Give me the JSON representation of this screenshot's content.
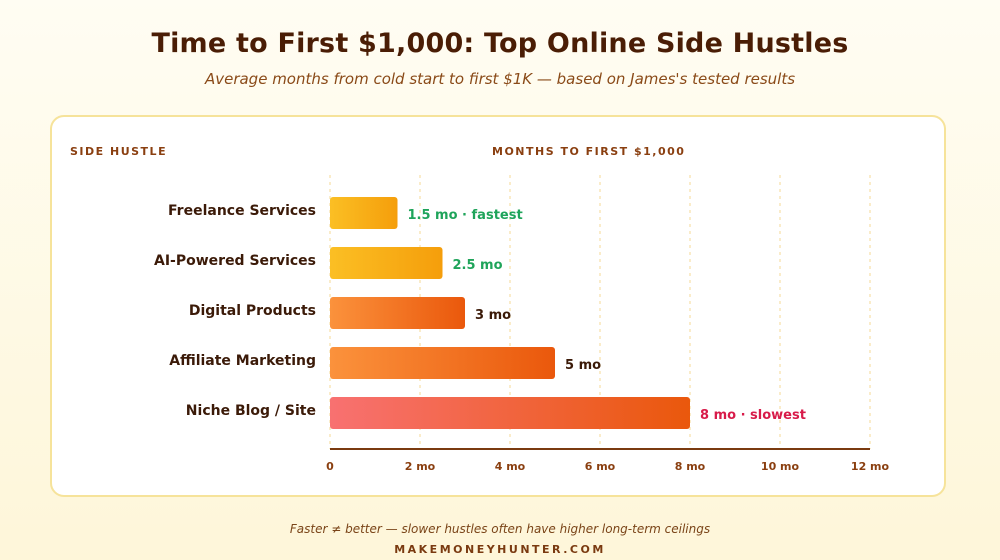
{
  "chart_data": {
    "type": "bar",
    "orientation": "horizontal",
    "title": "Time to First $1,000: Top Online Side Hustles",
    "subtitle": "Average months from cold start to first $1K — based on James's tested results",
    "category_header": "SIDE HUSTLE",
    "value_header": "MONTHS TO FIRST $1,000",
    "categories": [
      "Freelance Services",
      "AI-Powered Services",
      "Digital Products",
      "Affiliate Marketing",
      "Niche Blog / Site"
    ],
    "values": [
      1.5,
      2.5,
      3,
      5,
      8
    ],
    "value_labels": [
      "1.5 mo · fastest",
      "2.5 mo",
      "3 mo",
      "5 mo",
      "8 mo · slowest"
    ],
    "label_colors": [
      "#1fa45a",
      "#1fa45a",
      "#3b1a08",
      "#3b1a08",
      "#d81b4a"
    ],
    "bar_gradients": [
      [
        "#fbbf24",
        "#f59e0b"
      ],
      [
        "#fbbf24",
        "#f59e0b"
      ],
      [
        "#fb923c",
        "#ea580c"
      ],
      [
        "#fb923c",
        "#ea580c"
      ],
      [
        "#f87171",
        "#ea580c"
      ]
    ],
    "xlim": [
      0,
      12
    ],
    "xticks": [
      0,
      2,
      4,
      6,
      8,
      10,
      12
    ],
    "xtick_labels": [
      "0",
      "2 mo",
      "4 mo",
      "6 mo",
      "8 mo",
      "10 mo",
      "12 mo"
    ],
    "grid": true
  },
  "footer": {
    "note": "Faster ≠ better — slower hustles often have higher long-term ceilings",
    "brand": "MAKEMONEYHUNTER.COM"
  }
}
